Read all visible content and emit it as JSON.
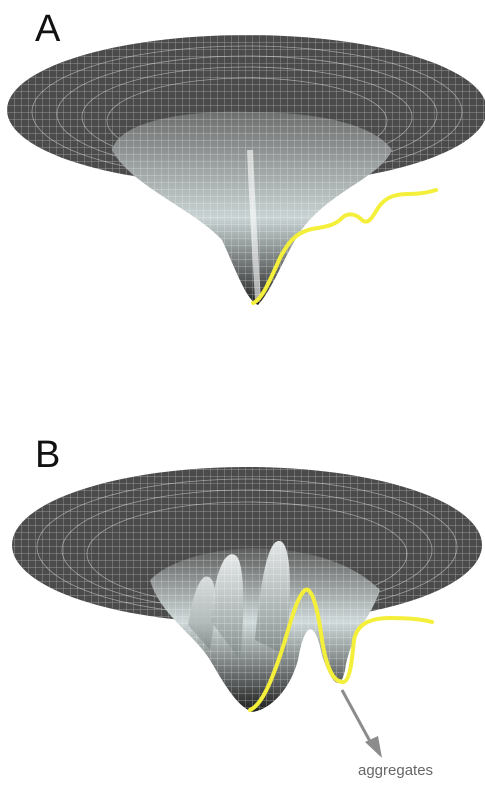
{
  "panels": [
    {
      "label": "A"
    },
    {
      "label": "B"
    }
  ],
  "annotation": {
    "text": "aggregates"
  },
  "colors": {
    "surface": "#4a4a4a",
    "surface_light": "#d8e2e2",
    "mesh": "#ffffff",
    "highlight": "#f4ef3a",
    "arrow": "#8c8c8c"
  }
}
